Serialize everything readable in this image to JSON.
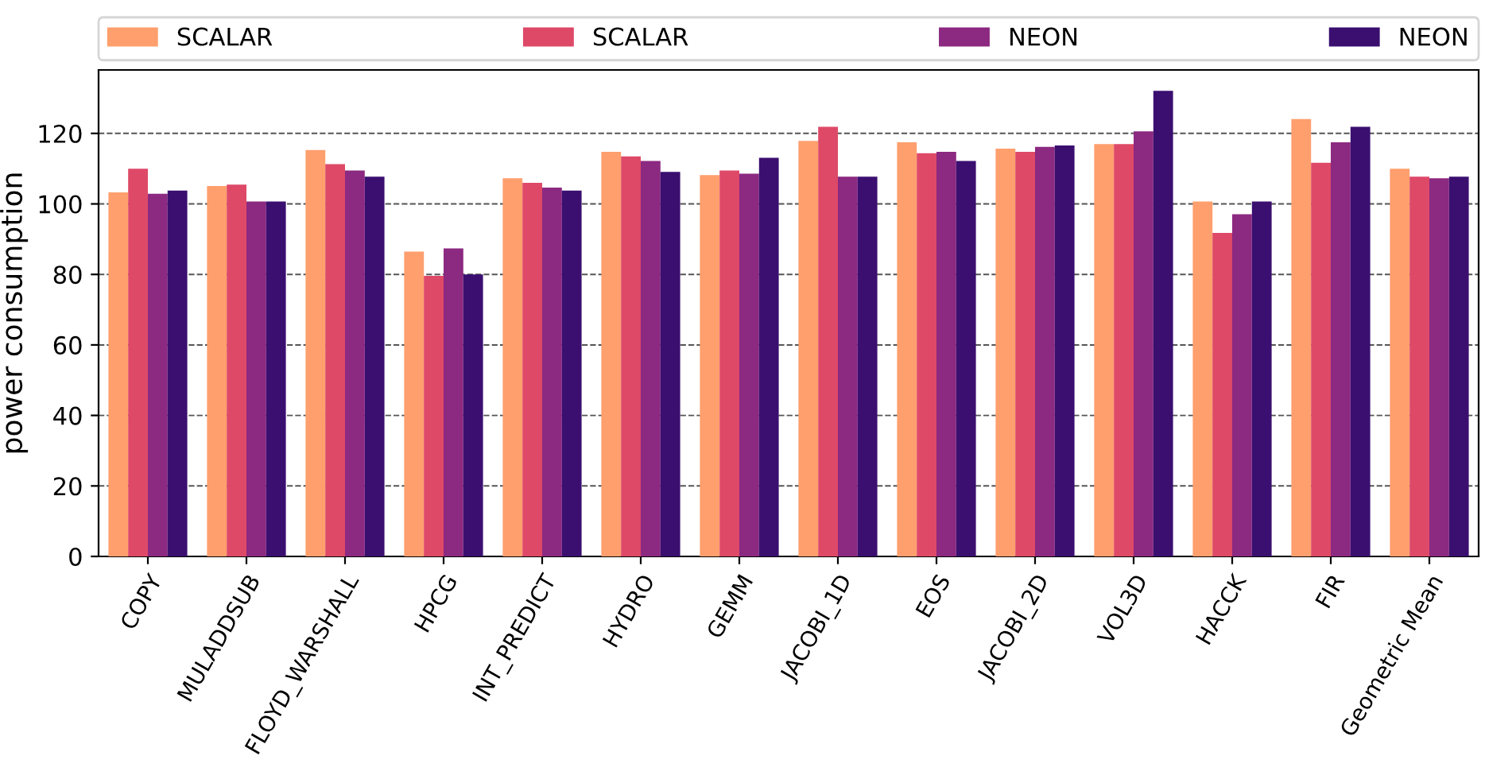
{
  "chart_data": {
    "type": "bar",
    "ylabel": "power consumption",
    "categories": [
      "COPY",
      "MULADDSUB",
      "FLOYD_WARSHALL",
      "HPCG",
      "INT_PREDICT",
      "HYDRO",
      "GEMM",
      "JACOBI_1D",
      "EOS",
      "JACOBI_2D",
      "VOL3D",
      "HACCK",
      "FIR",
      "Geometric Mean"
    ],
    "series": [
      {
        "name": "SCALAR",
        "color": "#fe9f6d",
        "values": [
          103.3,
          105.1,
          115.3,
          86.5,
          107.3,
          114.8,
          108.2,
          117.9,
          117.5,
          115.7,
          117.0,
          100.7,
          124.1,
          110.0
        ]
      },
      {
        "name": "SCALAR",
        "color": "#de4968",
        "values": [
          110.0,
          105.5,
          111.3,
          79.6,
          106.0,
          113.5,
          109.5,
          121.9,
          114.4,
          114.8,
          117.0,
          91.8,
          111.7,
          107.7
        ]
      },
      {
        "name": "NEON",
        "color": "#8c2981",
        "values": [
          102.9,
          100.7,
          109.5,
          87.4,
          104.6,
          112.2,
          108.6,
          107.7,
          114.8,
          116.2,
          120.6,
          97.1,
          117.5,
          107.3
        ]
      },
      {
        "name": "NEON",
        "color": "#3b0f70",
        "values": [
          103.8,
          100.7,
          107.7,
          80.0,
          103.8,
          109.1,
          113.1,
          107.7,
          112.2,
          116.6,
          132.1,
          100.7,
          121.9,
          107.7
        ]
      }
    ],
    "ylim": [
      0,
      138
    ],
    "yticks": [
      0,
      20,
      40,
      60,
      80,
      100,
      120
    ],
    "grid": "y",
    "legend": "top"
  }
}
